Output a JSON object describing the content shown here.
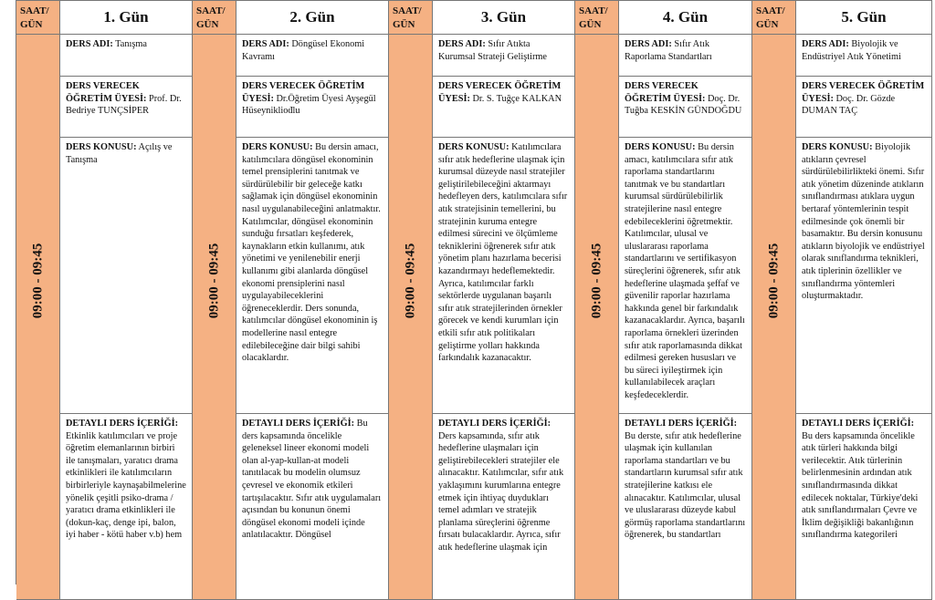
{
  "header": {
    "saat_label": "SAAT/ GÜN"
  },
  "time": "09:00 - 09:45",
  "labels": {
    "ders_adi": "DERS ADI:",
    "verecek": "DERS VERECEK ÖĞRETİM ÜYESİ:",
    "konu": "DERS KONUSU:",
    "detay": "DETAYLI DERS İÇERİĞİ:"
  },
  "days": [
    {
      "title": "1. Gün",
      "ders_adi": "Tanışma",
      "verecek": "Prof. Dr. Bedriye TUNÇSİPER",
      "konu": "Açılış ve Tanışma",
      "detay": "Etkinlik katılımcıları ve proje öğretim elemanlarının birbiri ile tanışmaları, yaratıcı drama etkinlikleri ile katılımcıların birbirleriyle kaynaşabilmelerine yönelik çeşitli psiko-drama / yaratıcı drama etkinlikleri ile (dokun-kaç, denge ipi, balon, iyi haber - kötü haber v.b) hem"
    },
    {
      "title": "2. Gün",
      "ders_adi": "Döngüsel Ekonomi Kavramı",
      "verecek": "Dr.Öğretim Üyesi Ayşegül Hüseynikliođlu",
      "konu": "Bu dersin amacı, katılımcılara döngüsel ekonominin temel prensiplerini tanıtmak ve sürdürülebilir bir geleceğe katkı sağlamak için döngüsel ekonominin nasıl uygulanabileceğini anlatmaktır. Katılımcılar, döngüsel ekonominin sunduğu fırsatları keşfederek, kaynakların etkin kullanımı, atık yönetimi ve yenilenebilir enerji kullanımı gibi alanlarda döngüsel ekonomi prensiplerini nasıl uygulayabileceklerini öğreneceklerdir. Ders sonunda, katılımcılar döngüsel ekonominin iş modellerine nasıl entegre edilebileceğine dair bilgi sahibi olacaklardır.",
      "detay": "Bu ders kapsamında öncelikle geleneksel lineer ekonomi modeli olan al-yap-kullan-at modeli tanıtılacak bu modelin olumsuz çevresel ve ekonomik etkileri tartışılacaktır. Sıfır atık uygulamaları açısından bu konunun önemi döngüsel ekonomi modeli içinde anlatılacaktır. Döngüsel"
    },
    {
      "title": "3. Gün",
      "ders_adi": "Sıfır Atıkta Kurumsal Strateji Geliştirme",
      "verecek": "Dr. S. Tuğçe KALKAN",
      "konu": "Katılımcılara sıfır atık hedeflerine ulaşmak için kurumsal düzeyde nasıl stratejiler geliştirilebileceğini aktarmayı hedefleyen ders, katılımcılara sıfır atık stratejisinin temellerini, bu stratejinin kuruma entegre edilmesi sürecini ve ölçümleme tekniklerini öğrenerek sıfır atık yönetim planı hazırlama becerisi kazandırmayı hedeflemektedir. Ayrıca, katılımcılar farklı sektörlerde uygulanan başarılı sıfır atık stratejilerinden örnekler görecek ve kendi kurumları için etkili sıfır atık politikaları geliştirme yolları hakkında farkındalık kazanacaktır.",
      "detay": "Ders kapsamında, sıfır atık hedeflerine ulaşmaları için geliştirebilecekleri stratejiler ele alınacaktır. Katılımcılar, sıfır atık yaklaşımını kurumlarına entegre etmek için ihtiyaç duydukları temel adımları ve stratejik planlama süreçlerini öğrenme fırsatı bulacaklardır. Ayrıca, sıfır atık hedeflerine ulaşmak için"
    },
    {
      "title": "4. Gün",
      "ders_adi": "Sıfır Atık Raporlama Standartları",
      "verecek": "Doç. Dr. Tuğba KESKİN GÜNDOĞDU",
      "konu": "Bu dersin amacı, katılımcılara sıfır atık raporlama standartlarını tanıtmak ve bu standartları kurumsal sürdürülebilirlik stratejilerine nasıl entegre edebileceklerini öğretmektir. Katılımcılar, ulusal ve uluslararası raporlama standartlarını ve sertifikasyon süreçlerini öğrenerek, sıfır atık hedeflerine ulaşmada şeffaf ve güvenilir raporlar hazırlama hakkında genel bir farkındalık kazanacaklardır. Ayrıca, başarılı raporlama örnekleri üzerinden sıfır atık raporlamasında dikkat edilmesi gereken hususları ve bu süreci iyileştirmek için kullanılabilecek araçları keşfedeceklerdir.",
      "detay": "Bu derste, sıfır atık hedeflerine ulaşmak için kullanılan raporlama standartları ve bu standartların kurumsal sıfır atık stratejilerine katkısı ele alınacaktır. Katılımcılar, ulusal ve uluslararası düzeyde kabul görmüş raporlama standartlarını öğrenerek, bu standartları"
    },
    {
      "title": "5. Gün",
      "ders_adi": "Biyolojik ve Endüstriyel Atık Yönetimi",
      "verecek": "Doç. Dr. Gözde DUMAN TAÇ",
      "konu": "Biyolojik atıkların çevresel sürdürülebilirlikteki önemi. Sıfır atık yönetim düzeninde atıkların sınıflandırması atıklara uygun bertaraf yöntemlerinin tespit edilmesinde çok önemli bir basamaktır. Bu dersin konusunu atıkların biyolojik ve endüstriyel olarak sınıflandırma teknikleri, atık tiplerinin özellikler ve sınıflandırma yöntemleri oluşturmaktadır.",
      "detay": "Bu ders kapsamında öncelikle atık türleri hakkında bilgi verilecektir. Atık türlerinin belirlenmesinin ardından atık sınıflandırmasında dikkat edilecek noktalar, Türkiye'deki atık sınıflandırmaları Çevre ve İklim değişikliği bakanlığının sınıflandırma kategorileri"
    }
  ],
  "colors": {
    "saat_bg": "#F5B183",
    "border": "#777777"
  }
}
